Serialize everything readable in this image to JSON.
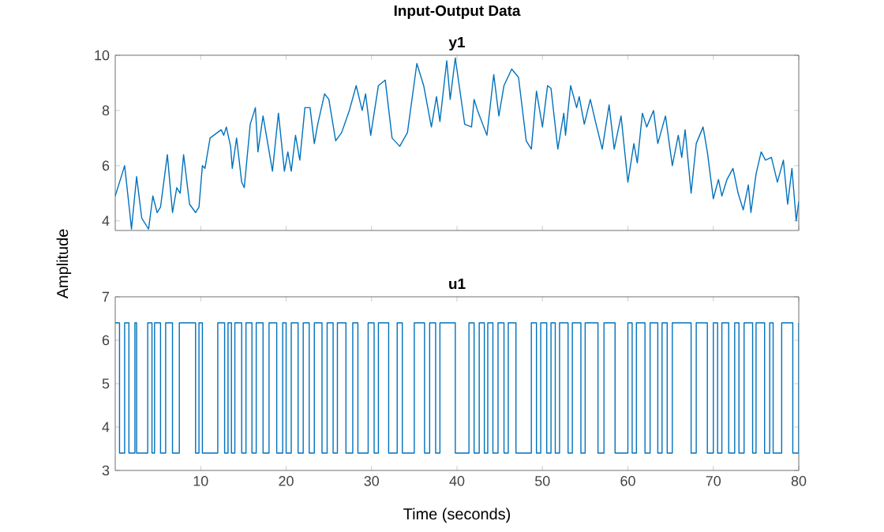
{
  "chart_data": [
    {
      "type": "line",
      "title": "Input-Output Data",
      "subtitle": "y1",
      "ylabel": "Amplitude",
      "color": "#0072bd",
      "xlim": [
        0,
        80
      ],
      "ylim": [
        3.65,
        10
      ],
      "xticks": [
        10,
        20,
        30,
        40,
        50,
        60,
        70,
        80
      ],
      "yticks": [
        4,
        6,
        8,
        10
      ],
      "tick_labels": "y",
      "x": [
        0,
        1.1,
        1.7,
        1.9,
        2.5,
        3.1,
        3.9,
        4.4,
        4.9,
        5.3,
        6.1,
        6.7,
        7.2,
        7.6,
        8.0,
        8.7,
        9.4,
        9.8,
        10.2,
        10.5,
        11.1,
        12.4,
        12.7,
        13.0,
        13.5,
        13.7,
        14.2,
        14.8,
        15.1,
        15.8,
        16.4,
        16.7,
        17.3,
        18.4,
        19.1,
        19.8,
        20.2,
        20.6,
        21.1,
        21.6,
        22.2,
        22.8,
        23.3,
        23.7,
        24.5,
        25.0,
        25.8,
        26.5,
        27.4,
        28.2,
        28.9,
        29.3,
        29.9,
        30.8,
        31.6,
        32.4,
        33.3,
        34.2,
        35.3,
        36.1,
        37.0,
        37.6,
        38.0,
        38.8,
        39.2,
        39.8,
        40.9,
        41.7,
        42.0,
        42.4,
        43.5,
        44.3,
        44.9,
        45.5,
        46.4,
        47.2,
        48.1,
        48.7,
        49.3,
        50.0,
        50.6,
        51.0,
        51.8,
        52.5,
        52.7,
        53.3,
        54.0,
        54.3,
        54.9,
        55.6,
        56.2,
        57.0,
        57.8,
        58.4,
        59.2,
        60.0,
        60.7,
        61.1,
        61.7,
        62.2,
        63.0,
        63.5,
        64.4,
        65.2,
        65.9,
        66.3,
        66.7,
        67.4,
        68.0,
        68.8,
        69.3,
        70.0,
        70.6,
        71.0,
        71.6,
        72.3,
        72.9,
        73.5,
        74.1,
        74.4,
        75.0,
        75.6,
        76.1,
        76.8,
        77.5,
        78.2,
        78.7,
        79.2,
        79.7,
        80.0
      ],
      "values": [
        4.9,
        6.0,
        4.3,
        3.7,
        5.6,
        4.1,
        3.7,
        4.9,
        4.3,
        4.5,
        6.4,
        4.3,
        5.2,
        5.0,
        6.4,
        4.6,
        4.3,
        4.5,
        6.0,
        5.9,
        7.0,
        7.3,
        7.1,
        7.4,
        6.7,
        5.9,
        7.0,
        5.4,
        5.2,
        7.5,
        8.1,
        6.5,
        7.8,
        5.8,
        7.9,
        5.8,
        6.5,
        5.8,
        7.1,
        6.2,
        8.1,
        8.1,
        6.8,
        7.5,
        8.6,
        8.4,
        6.9,
        7.2,
        8.0,
        8.9,
        8.0,
        8.6,
        7.1,
        8.9,
        9.1,
        7.0,
        6.7,
        7.2,
        9.7,
        8.9,
        7.4,
        8.5,
        7.6,
        9.8,
        8.4,
        9.9,
        7.5,
        7.4,
        8.4,
        8.0,
        7.1,
        9.3,
        7.8,
        8.9,
        9.5,
        9.2,
        6.9,
        6.6,
        8.7,
        7.4,
        8.9,
        8.8,
        6.6,
        7.9,
        7.1,
        8.9,
        8.1,
        8.5,
        7.5,
        8.4,
        7.6,
        6.6,
        8.2,
        6.6,
        7.8,
        5.4,
        6.8,
        6.1,
        7.9,
        7.4,
        8.0,
        6.8,
        7.8,
        6.0,
        7.1,
        6.3,
        7.3,
        5.0,
        6.8,
        7.4,
        6.5,
        4.8,
        5.5,
        4.9,
        5.5,
        5.9,
        5.0,
        4.4,
        5.3,
        4.3,
        5.7,
        6.5,
        6.2,
        6.3,
        5.4,
        6.2,
        4.6,
        5.9,
        4.0,
        4.7
      ]
    },
    {
      "type": "step",
      "title": "u1",
      "xlabel": "Time (seconds)",
      "color": "#0072bd",
      "xlim": [
        0,
        80
      ],
      "ylim": [
        3,
        7
      ],
      "xticks": [
        10,
        20,
        30,
        40,
        50,
        60,
        70,
        80
      ],
      "yticks": [
        3,
        4,
        5,
        6,
        7
      ],
      "x": [
        0,
        0.5,
        1.1,
        1.6,
        2.3,
        2.5,
        3.8,
        4.3,
        4.6,
        5.3,
        5.9,
        6.7,
        7.5,
        9.4,
        9.8,
        10.2,
        12.0,
        12.8,
        13.2,
        13.6,
        14.0,
        14.8,
        15.3,
        16.0,
        16.5,
        17.3,
        18.0,
        18.9,
        19.6,
        20.0,
        20.6,
        21.4,
        22.0,
        22.7,
        23.3,
        24.2,
        24.8,
        25.5,
        26.0,
        27.0,
        27.8,
        28.4,
        29.6,
        30.3,
        30.8,
        32.0,
        33.0,
        33.6,
        35.0,
        36.2,
        36.8,
        37.5,
        38.0,
        39.8,
        41.4,
        42.0,
        42.6,
        43.2,
        43.6,
        44.2,
        44.8,
        45.5,
        46.0,
        46.9,
        48.7,
        49.3,
        49.8,
        50.5,
        51.0,
        51.5,
        52.0,
        53.0,
        53.5,
        54.5,
        55.0,
        56.5,
        57.2,
        58.5,
        60.0,
        60.5,
        61.0,
        62.0,
        62.6,
        63.5,
        64.0,
        64.6,
        65.2,
        67.4,
        68.0,
        69.3,
        70.0,
        70.5,
        71.0,
        71.8,
        72.5,
        73.0,
        73.6,
        74.6,
        75.0,
        76.0,
        76.6,
        77.0,
        78.0,
        79.3,
        80.0
      ],
      "values": [
        6.4,
        3.4,
        6.4,
        3.4,
        6.4,
        3.4,
        6.4,
        3.4,
        6.4,
        3.4,
        6.4,
        3.4,
        6.4,
        3.4,
        6.4,
        3.4,
        6.4,
        3.4,
        6.4,
        3.4,
        6.4,
        3.4,
        6.4,
        3.4,
        6.4,
        3.4,
        6.4,
        3.4,
        6.4,
        3.4,
        6.4,
        3.4,
        6.4,
        3.4,
        6.4,
        3.4,
        6.4,
        3.4,
        6.4,
        3.4,
        6.4,
        3.4,
        6.4,
        3.4,
        6.4,
        3.4,
        6.4,
        3.4,
        6.4,
        3.4,
        6.4,
        3.4,
        6.4,
        3.4,
        6.4,
        3.4,
        6.4,
        3.4,
        6.4,
        3.4,
        6.4,
        3.4,
        6.4,
        3.4,
        6.4,
        3.4,
        6.4,
        3.4,
        6.4,
        3.4,
        6.4,
        3.4,
        6.4,
        3.4,
        6.4,
        3.4,
        6.4,
        3.4,
        6.4,
        3.4,
        6.4,
        3.4,
        6.4,
        3.4,
        6.4,
        3.4,
        6.4,
        3.4,
        6.4,
        3.4,
        6.4,
        3.4,
        6.4,
        3.4,
        6.4,
        3.4,
        6.4,
        3.4,
        6.4,
        3.4,
        6.4,
        3.4,
        6.4,
        3.4,
        6.4
      ]
    }
  ]
}
